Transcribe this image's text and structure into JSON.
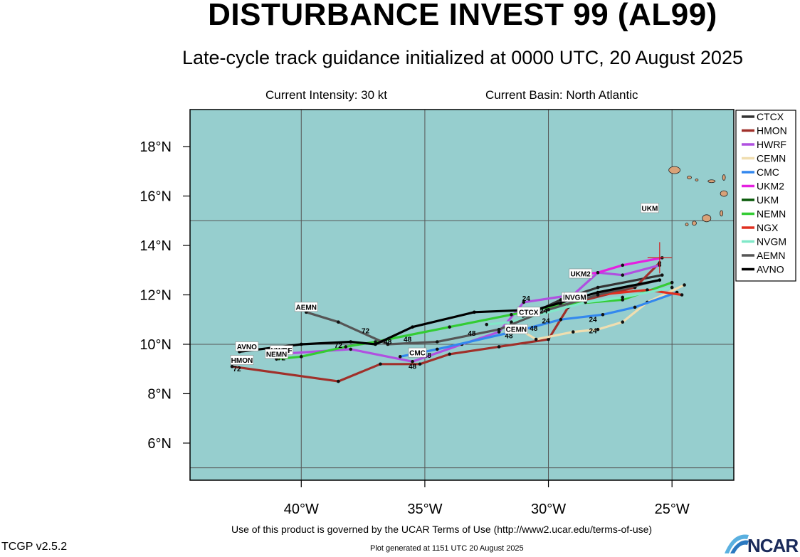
{
  "header": {
    "title": "DISTURBANCE INVEST 99 (AL99)",
    "subtitle": "Late-cycle track guidance initialized at 0000 UTC, 20 August 2025",
    "current_intensity": "Current Intensity: 30 kt",
    "current_basin": "Current Basin: North Atlantic"
  },
  "footer": {
    "terms": "Use of this product is governed by the UCAR Terms of Use (http://www2.ucar.edu/terms-of-use)",
    "version": "TCGP v2.5.2",
    "generated": "Plot generated at 1151 UTC   20 August 2025",
    "logo_text": "NCAR"
  },
  "colors": {
    "ocean": "#96cece",
    "land": "#d9a278",
    "grid": "#555555"
  },
  "chart_data": {
    "type": "line",
    "xlabel": "",
    "ylabel": "",
    "xlim": [
      -44.5,
      -22.5
    ],
    "ylim": [
      4.5,
      19.5
    ],
    "x_ticks": [
      -40,
      -35,
      -30,
      -25
    ],
    "x_tick_labels": [
      "40°W",
      "35°W",
      "30°W",
      "25°W"
    ],
    "y_ticks": [
      6,
      8,
      10,
      12,
      14,
      16,
      18
    ],
    "y_tick_labels": [
      "6°N",
      "8°N",
      "10°N",
      "12°N",
      "14°N",
      "16°N",
      "18°N"
    ],
    "legend_position": "right",
    "current_position": [
      -25.5,
      13.5
    ],
    "series": [
      {
        "name": "CTCX",
        "color": "#333333",
        "points": [
          [
            -25.4,
            12.8
          ],
          [
            -28.0,
            12.3
          ],
          [
            -29.5,
            11.8
          ],
          [
            -31.0,
            11.1
          ]
        ],
        "label": "CTCX",
        "label_at": [
          -30.8,
          11.3
        ]
      },
      {
        "name": "HMON",
        "color": "#a0302a",
        "points": [
          [
            -25.5,
            13.3
          ],
          [
            -26.5,
            12.3
          ],
          [
            -28.5,
            11.8
          ],
          [
            -29.2,
            11.5
          ],
          [
            -30.0,
            10.2
          ],
          [
            -32.0,
            9.9
          ],
          [
            -34.0,
            9.6
          ],
          [
            -35.2,
            9.2
          ],
          [
            -36.8,
            9.2
          ],
          [
            -38.5,
            8.5
          ],
          [
            -42.8,
            9.1
          ]
        ],
        "label": "HMON",
        "label_at": [
          -42.4,
          9.35
        ]
      },
      {
        "name": "HWRF",
        "color": "#b050e0",
        "points": [
          [
            -25.5,
            13.2
          ],
          [
            -27.0,
            12.8
          ],
          [
            -28.0,
            12.9
          ],
          [
            -29.0,
            12.0
          ],
          [
            -31.0,
            11.7
          ],
          [
            -32.0,
            10.5
          ],
          [
            -33.5,
            10.0
          ],
          [
            -35.5,
            9.3
          ],
          [
            -38.0,
            9.8
          ],
          [
            -41.0,
            9.6
          ]
        ],
        "label": "HWRF",
        "label_at": [
          -40.8,
          9.75
        ]
      },
      {
        "name": "CEMN",
        "color": "#f0deb0",
        "points": [
          [
            -24.5,
            12.4
          ],
          [
            -26.0,
            11.7
          ],
          [
            -27.0,
            10.9
          ],
          [
            -28.0,
            10.6
          ],
          [
            -29.0,
            10.5
          ],
          [
            -30.5,
            10.2
          ],
          [
            -31.5,
            10.8
          ]
        ],
        "label": "CEMN",
        "label_at": [
          -31.3,
          10.6
        ]
      },
      {
        "name": "CMC",
        "color": "#3388ee",
        "points": [
          [
            -24.8,
            12.1
          ],
          [
            -26.5,
            11.5
          ],
          [
            -27.8,
            11.2
          ],
          [
            -29.5,
            11.0
          ],
          [
            -31.0,
            10.6
          ],
          [
            -34.5,
            9.8
          ],
          [
            -36.0,
            9.5
          ]
        ],
        "label": "CMC",
        "label_at": [
          -35.3,
          9.65
        ]
      },
      {
        "name": "UKM2",
        "color": "#e520e0",
        "points": [
          [
            -25.4,
            13.5
          ],
          [
            -27.0,
            13.2
          ],
          [
            -28.0,
            12.9
          ],
          [
            -28.8,
            12.8
          ]
        ],
        "label": "UKM2",
        "label_at": [
          -28.7,
          12.85
        ]
      },
      {
        "name": "UKM",
        "color": "#0a5a0a",
        "points": [],
        "label": "UKM",
        "label_at": [
          -25.9,
          15.5
        ]
      },
      {
        "name": "NEMN",
        "color": "#33cc33",
        "points": [
          [
            -25.0,
            12.5
          ],
          [
            -27.0,
            11.8
          ],
          [
            -29.5,
            11.6
          ],
          [
            -31.5,
            11.2
          ],
          [
            -34.0,
            10.7
          ],
          [
            -37.0,
            10.1
          ],
          [
            -38.2,
            9.9
          ],
          [
            -40.0,
            9.5
          ],
          [
            -41.0,
            9.4
          ]
        ],
        "label": "NEMN",
        "label_at": [
          -41.0,
          9.6
        ]
      },
      {
        "name": "NGX",
        "color": "#e03020",
        "points": [
          [
            -24.6,
            12.0
          ],
          [
            -26.0,
            12.2
          ],
          [
            -28.0,
            12.0
          ]
        ],
        "label": "NGX",
        "label_at": [
          -29.1,
          11.9
        ]
      },
      {
        "name": "NVGM",
        "color": "#80e8c8",
        "points": [
          [
            -25.0,
            12.3
          ],
          [
            -27.0,
            11.9
          ],
          [
            -28.5,
            11.7
          ],
          [
            -31.5,
            10.9
          ],
          [
            -32.5,
            10.8
          ]
        ],
        "label": "NVGM",
        "label_at": [
          -28.9,
          11.9
        ]
      },
      {
        "name": "AEMN",
        "color": "#555555",
        "points": [
          [
            -25.5,
            12.6
          ],
          [
            -28.0,
            12.0
          ],
          [
            -30.0,
            11.4
          ],
          [
            -32.0,
            10.6
          ],
          [
            -34.5,
            10.1
          ],
          [
            -36.5,
            10.0
          ],
          [
            -38.5,
            10.9
          ],
          [
            -39.8,
            11.3
          ]
        ],
        "label": "AEMN",
        "label_at": [
          -39.8,
          11.5
        ]
      },
      {
        "name": "AVNO",
        "color": "#000000",
        "points": [
          [
            -25.5,
            12.6
          ],
          [
            -28.0,
            12.1
          ],
          [
            -30.5,
            11.4
          ],
          [
            -33.0,
            11.3
          ],
          [
            -35.5,
            10.7
          ],
          [
            -37.0,
            10.0
          ],
          [
            -38.0,
            10.1
          ],
          [
            -40.0,
            10.0
          ],
          [
            -42.5,
            9.7
          ]
        ],
        "label": "AVNO",
        "label_at": [
          -42.2,
          9.9
        ]
      }
    ],
    "hour_labels": [
      {
        "text": "72",
        "at": [
          -42.6,
          8.9
        ]
      },
      {
        "text": "72",
        "at": [
          -40.8,
          9.35
        ]
      },
      {
        "text": "72",
        "at": [
          -38.5,
          9.85
        ]
      },
      {
        "text": "72",
        "at": [
          -37.4,
          10.45
        ]
      },
      {
        "text": "48",
        "at": [
          -36.5,
          10.0
        ]
      },
      {
        "text": "48",
        "at": [
          -35.7,
          10.1
        ]
      },
      {
        "text": "48",
        "at": [
          -35.5,
          9.0
        ]
      },
      {
        "text": "48",
        "at": [
          -34.9,
          9.45
        ]
      },
      {
        "text": "48",
        "at": [
          -33.1,
          10.35
        ]
      },
      {
        "text": "48",
        "at": [
          -31.6,
          10.25
        ]
      },
      {
        "text": "48",
        "at": [
          -30.6,
          10.55
        ]
      },
      {
        "text": "24",
        "at": [
          -30.9,
          11.75
        ]
      },
      {
        "text": "24",
        "at": [
          -30.1,
          10.85
        ]
      },
      {
        "text": "24",
        "at": [
          -30.2,
          11.25
        ]
      },
      {
        "text": "24",
        "at": [
          -28.2,
          10.45
        ]
      },
      {
        "text": "24",
        "at": [
          -28.2,
          10.9
        ]
      }
    ]
  }
}
